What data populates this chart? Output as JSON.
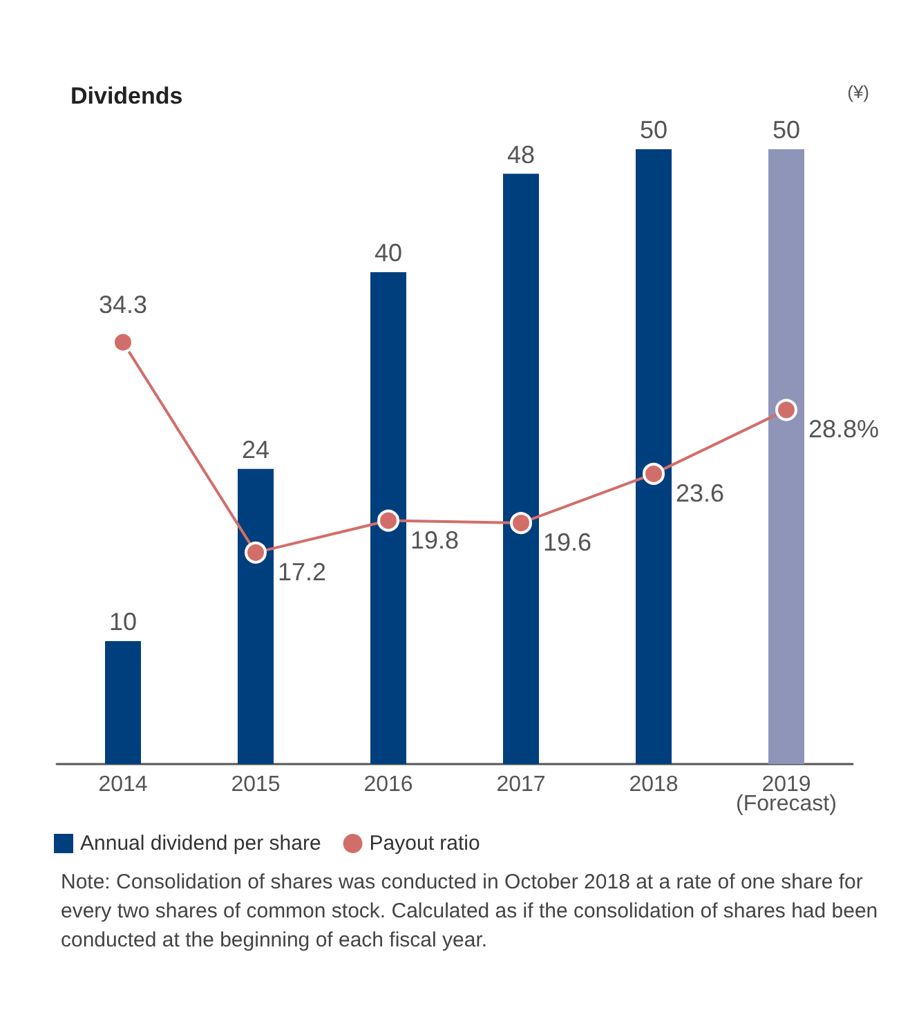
{
  "chart_data": {
    "type": "bar",
    "title": "Dividends",
    "categories": [
      "2014",
      "2015",
      "2016",
      "2017",
      "2018",
      "2019\n(Forecast)"
    ],
    "series": [
      {
        "name": "Annual dividend per share",
        "colors": [
          "#003f7d",
          "#003f7d",
          "#003f7d",
          "#003f7d",
          "#003f7d",
          "#8f95b8"
        ],
        "values": [
          10,
          24,
          40,
          48,
          50,
          50
        ],
        "value_labels": [
          "10",
          "24",
          "40",
          "48",
          "50",
          "50"
        ]
      },
      {
        "name": "Payout ratio",
        "type": "line",
        "color": "#d26e6a",
        "values": [
          34.3,
          17.2,
          19.8,
          19.6,
          23.6,
          28.8
        ],
        "value_labels": [
          "34.3",
          "17.2",
          "19.8",
          "19.6",
          "23.6",
          "28.8%"
        ]
      }
    ],
    "marker": "circle",
    "line_style": "solid",
    "legend": "bottom left",
    "grid": false,
    "tick_labels": "x",
    "annotations": [
      "(¥)",
      "Note: Consolidation of shares was conducted in October 2018 at a rate of one share for every two shares of common stock. Calculated as if the consolidation of shares had been conducted at the beginning of each fiscal year."
    ]
  }
}
